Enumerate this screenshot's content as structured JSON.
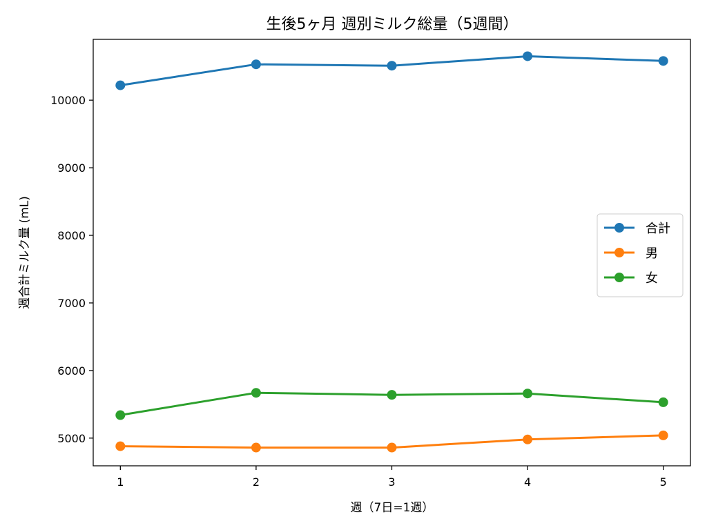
{
  "chart_data": {
    "type": "line",
    "title": "生後5ヶ月 週別ミルク総量（5週間）",
    "xlabel": "週（7日=1週）",
    "ylabel": "週合計ミルク量 (mL)",
    "x": [
      1,
      2,
      3,
      4,
      5
    ],
    "xlim": [
      0.8,
      5.2
    ],
    "ylim": [
      4590,
      10900
    ],
    "yticks": [
      5000,
      6000,
      7000,
      8000,
      9000,
      10000
    ],
    "grid": false,
    "legend_position": "center-right",
    "series": [
      {
        "name": "合計",
        "color": "#1f77b4",
        "values": [
          10220,
          10530,
          10510,
          10650,
          10580
        ]
      },
      {
        "name": "男",
        "color": "#ff7f0e",
        "values": [
          4880,
          4860,
          4860,
          4980,
          5040
        ]
      },
      {
        "name": "女",
        "color": "#2ca02c",
        "values": [
          5340,
          5670,
          5640,
          5660,
          5530
        ]
      }
    ]
  }
}
